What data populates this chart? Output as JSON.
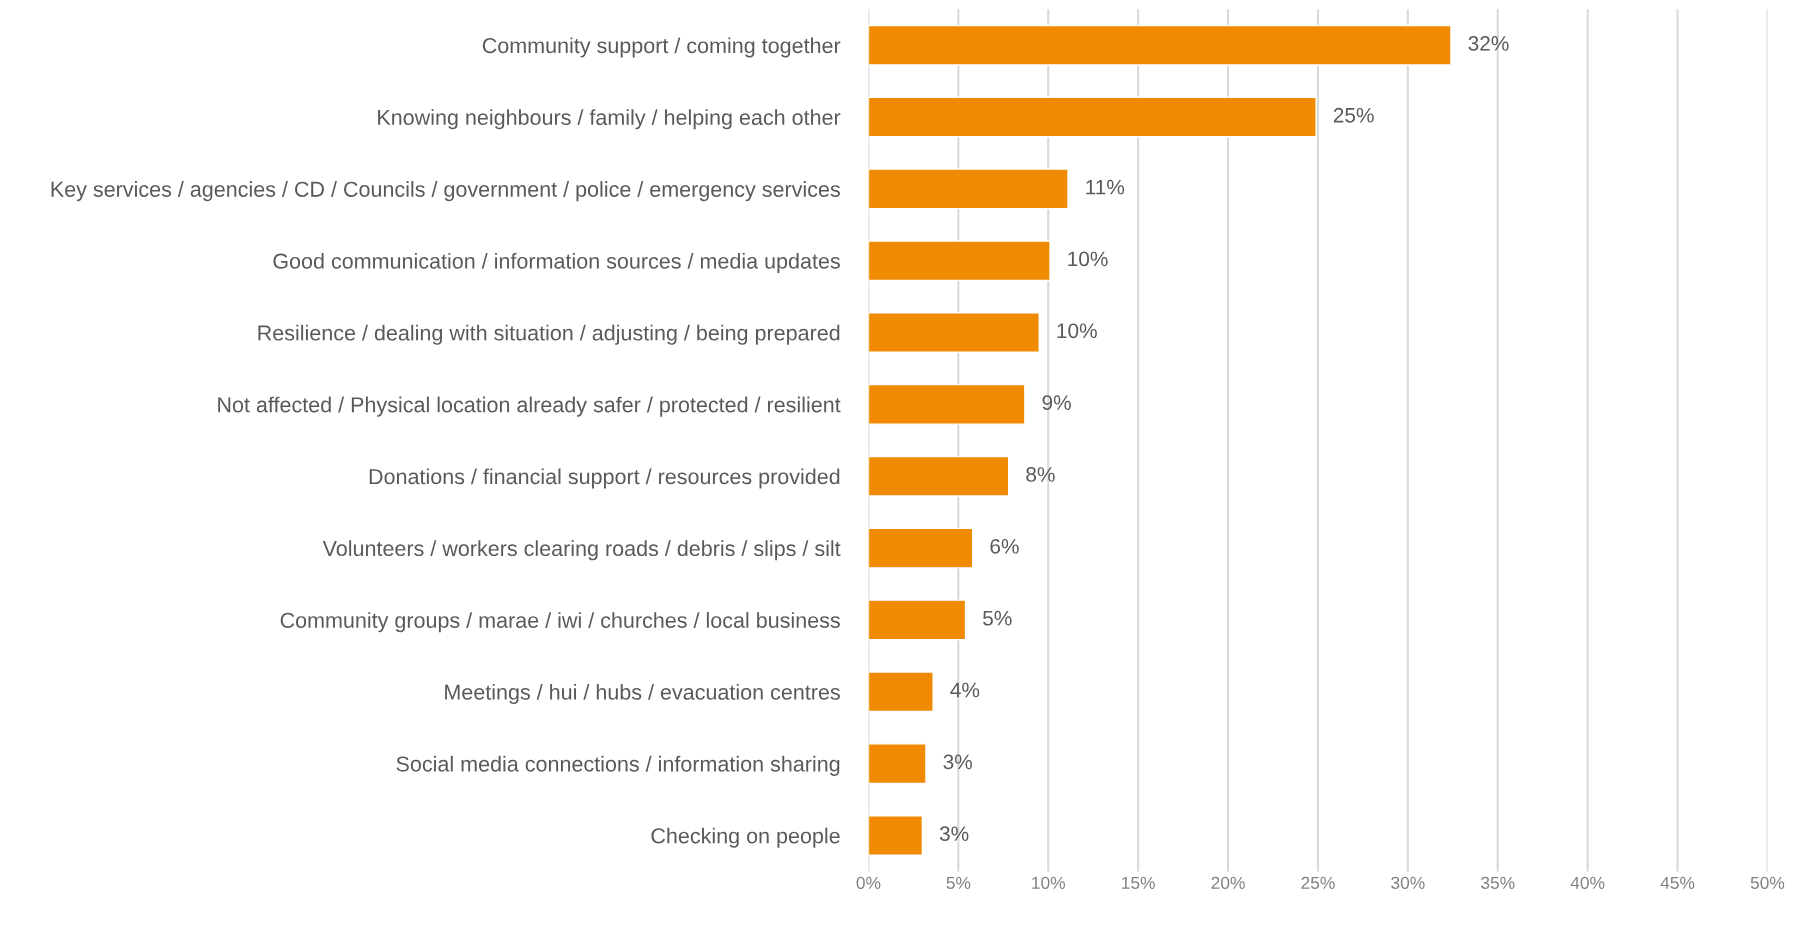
{
  "chart_data": {
    "type": "bar",
    "orientation": "horizontal",
    "categories": [
      "Community support / coming together",
      "Knowing neighbours / family / helping each other",
      "Key services / agencies / CD / Councils / government / police / emergency services",
      "Good communication / information sources / media updates",
      "Resilience / dealing with situation / adjusting / being prepared",
      "Not affected / Physical location already safer / protected / resilient",
      "Donations / financial support / resources provided",
      "Volunteers / workers clearing roads / debris / slips / silt",
      "Community groups / marae / iwi / churches / local business",
      "Meetings / hui / hubs / evacuation centres",
      "Social media connections / information sharing",
      "Checking on people"
    ],
    "values": [
      32.4,
      24.9,
      11.1,
      10.1,
      9.5,
      8.7,
      7.8,
      5.8,
      5.4,
      3.6,
      3.2,
      3.0
    ],
    "value_labels": [
      "32%",
      "25%",
      "11%",
      "10%",
      "10%",
      "9%",
      "8%",
      "6%",
      "5%",
      "4%",
      "3%",
      "3%"
    ],
    "color": "#f08a00",
    "xlim": [
      0,
      50
    ],
    "xticks": [
      {
        "value": 0,
        "label": "0%"
      },
      {
        "value": 5,
        "label": "5%"
      },
      {
        "value": 10,
        "label": "10%"
      },
      {
        "value": 15,
        "label": "15%"
      },
      {
        "value": 20,
        "label": "20%"
      },
      {
        "value": 25,
        "label": "25%"
      },
      {
        "value": 30,
        "label": "30%"
      },
      {
        "value": 35,
        "label": "35%"
      },
      {
        "value": 40,
        "label": "40%"
      },
      {
        "value": 45,
        "label": "45%"
      },
      {
        "value": 50,
        "label": "50%"
      }
    ],
    "grid": "x"
  }
}
